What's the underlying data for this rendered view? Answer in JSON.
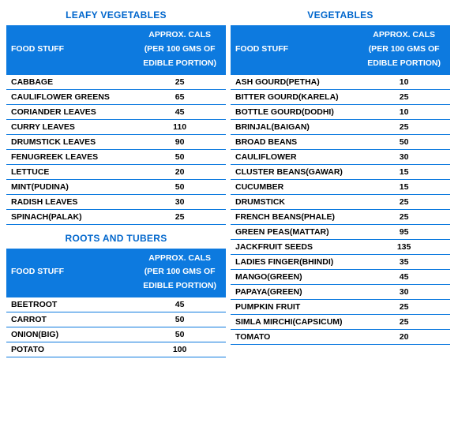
{
  "colors": {
    "header_bg": "#0d7adf",
    "header_text": "#ffffff",
    "title_text": "#0066cc",
    "row_border": "#0d7adf",
    "body_text": "#000000",
    "background": "#ffffff"
  },
  "columns": {
    "food": "FOOD STUFF",
    "cals": "APPROX. CALS (PER 100 GMS OF EDIBLE PORTION)"
  },
  "sections": {
    "leafy": {
      "title": "LEAFY VEGETABLES",
      "rows": [
        {
          "food": "CABBAGE",
          "cals": "25"
        },
        {
          "food": "CAULIFLOWER GREENS",
          "cals": "65"
        },
        {
          "food": "CORIANDER LEAVES",
          "cals": "45"
        },
        {
          "food": "CURRY LEAVES",
          "cals": "110"
        },
        {
          "food": "DRUMSTICK LEAVES",
          "cals": "90"
        },
        {
          "food": "FENUGREEK LEAVES",
          "cals": "50"
        },
        {
          "food": "LETTUCE",
          "cals": "20"
        },
        {
          "food": "MINT(PUDINA)",
          "cals": "50"
        },
        {
          "food": "RADISH LEAVES",
          "cals": "30"
        },
        {
          "food": "SPINACH(PALAK)",
          "cals": "25"
        }
      ]
    },
    "roots": {
      "title": "ROOTS  AND TUBERS",
      "rows": [
        {
          "food": "BEETROOT",
          "cals": "45"
        },
        {
          "food": "CARROT",
          "cals": "50"
        },
        {
          "food": "ONION(BIG)",
          "cals": "50"
        },
        {
          "food": "POTATO",
          "cals": "100"
        }
      ]
    },
    "vegetables": {
      "title": "VEGETABLES",
      "rows": [
        {
          "food": "ASH GOURD(PETHA)",
          "cals": "10"
        },
        {
          "food": "BITTER GOURD(KARELA)",
          "cals": "25"
        },
        {
          "food": "BOTTLE GOURD(DODHI)",
          "cals": "10"
        },
        {
          "food": "BRINJAL(BAIGAN)",
          "cals": "25"
        },
        {
          "food": "BROAD BEANS",
          "cals": "50"
        },
        {
          "food": "CAULIFLOWER",
          "cals": "30"
        },
        {
          "food": "CLUSTER BEANS(GAWAR)",
          "cals": "15"
        },
        {
          "food": "CUCUMBER",
          "cals": "15"
        },
        {
          "food": "DRUMSTICK",
          "cals": "25"
        },
        {
          "food": "FRENCH BEANS(PHALE)",
          "cals": "25"
        },
        {
          "food": "GREEN PEAS(MATTAR)",
          "cals": "95"
        },
        {
          "food": "JACKFRUIT SEEDS",
          "cals": "135"
        },
        {
          "food": "LADIES FINGER(BHINDI)",
          "cals": "35"
        },
        {
          "food": "MANGO(GREEN)",
          "cals": "45"
        },
        {
          "food": "PAPAYA(GREEN)",
          "cals": "30"
        },
        {
          "food": "PUMPKIN FRUIT",
          "cals": "25"
        },
        {
          "food": "SIMLA MIRCHI(CAPSICUM)",
          "cals": "25"
        },
        {
          "food": "TOMATO",
          "cals": "20"
        }
      ]
    }
  }
}
